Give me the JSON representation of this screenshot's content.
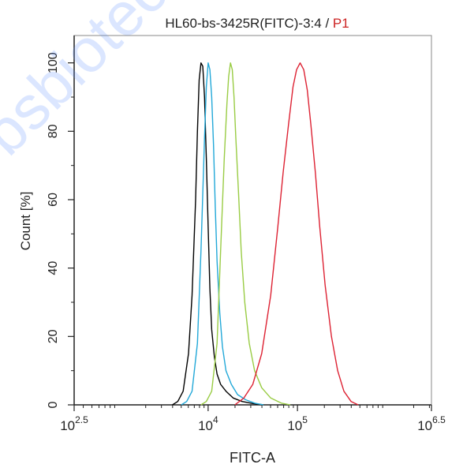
{
  "chart_data": {
    "type": "line",
    "title": "HL60-bs-3425R(FITC)-3:4",
    "title_separator": " / ",
    "title_gate": "P1",
    "title_gate_color": "#cc2222",
    "xlabel": "FITC-A",
    "ylabel": "Count [%]",
    "x_scale": "log10",
    "xlim": [
      2.5,
      6.5
    ],
    "ylim": [
      0,
      108
    ],
    "x_ticks": [
      {
        "exp": 2.5,
        "base": "10",
        "sup": "2.5"
      },
      {
        "exp": 4,
        "base": "10",
        "sup": "4"
      },
      {
        "exp": 5,
        "base": "10",
        "sup": "5"
      },
      {
        "exp": 6.5,
        "base": "10",
        "sup": "6.5"
      }
    ],
    "y_ticks": [
      0,
      20,
      40,
      60,
      80,
      100
    ],
    "grid": false,
    "series": [
      {
        "color": "#000000",
        "x_log10": [
          3.6,
          3.66,
          3.72,
          3.78,
          3.82,
          3.86,
          3.88,
          3.9,
          3.92,
          3.94,
          3.96,
          3.98,
          4.0,
          4.02,
          4.04,
          4.07,
          4.1,
          4.14,
          4.2,
          4.28,
          4.38,
          4.5,
          4.62
        ],
        "y": [
          0,
          1,
          4,
          15,
          32,
          60,
          80,
          95,
          100,
          99,
          90,
          72,
          52,
          34,
          22,
          14,
          9,
          6,
          4,
          2,
          1,
          0.4,
          0
        ]
      },
      {
        "color": "#22a8d8",
        "x_log10": [
          3.7,
          3.76,
          3.82,
          3.88,
          3.92,
          3.96,
          3.98,
          4.0,
          4.02,
          4.04,
          4.06,
          4.08,
          4.1,
          4.13,
          4.16,
          4.2,
          4.26,
          4.33,
          4.42,
          4.52,
          4.62
        ],
        "y": [
          0,
          1,
          4,
          18,
          45,
          78,
          93,
          100,
          98,
          90,
          76,
          58,
          42,
          27,
          17,
          10,
          6,
          3,
          1.5,
          0.5,
          0
        ]
      },
      {
        "color": "#99cc44",
        "x_log10": [
          3.92,
          3.98,
          4.04,
          4.1,
          4.14,
          4.18,
          4.21,
          4.23,
          4.25,
          4.27,
          4.29,
          4.31,
          4.34,
          4.37,
          4.41,
          4.46,
          4.52,
          4.6,
          4.7,
          4.82,
          4.92
        ],
        "y": [
          0,
          1,
          4,
          18,
          45,
          72,
          88,
          96,
          100,
          98,
          90,
          78,
          62,
          45,
          30,
          18,
          10,
          5,
          2,
          0.5,
          0
        ]
      },
      {
        "color": "#dd2233",
        "x_log10": [
          4.3,
          4.4,
          4.5,
          4.6,
          4.7,
          4.78,
          4.84,
          4.9,
          4.95,
          4.99,
          5.03,
          5.07,
          5.11,
          5.15,
          5.2,
          5.25,
          5.31,
          5.38,
          5.45,
          5.52,
          5.6,
          5.68
        ],
        "y": [
          0,
          2,
          6,
          15,
          32,
          52,
          68,
          82,
          93,
          98,
          100,
          98,
          92,
          82,
          68,
          52,
          35,
          20,
          10,
          4,
          1,
          0
        ]
      }
    ]
  },
  "watermark": "bsbiotech.com"
}
